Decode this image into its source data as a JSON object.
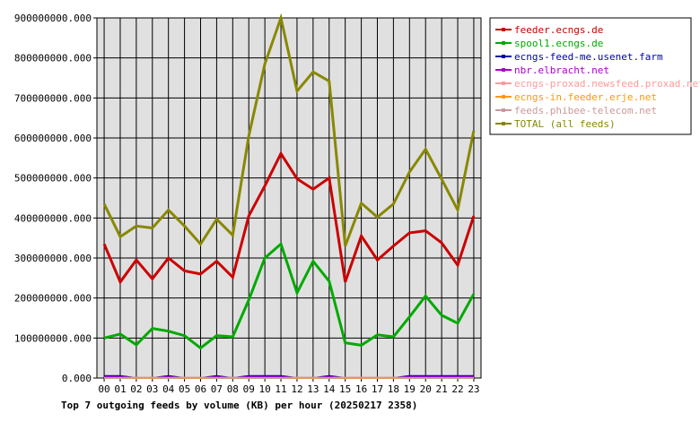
{
  "chart_data": {
    "type": "line",
    "title": "Top 7 outgoing feeds by volume (KB) per hour (20250217 2358)",
    "xlabel": "",
    "ylabel": "",
    "ylim": [
      0,
      900000000
    ],
    "grid": true,
    "legend_position": "right",
    "y_ticks": [
      "0.000",
      "100000000.000",
      "200000000.000",
      "300000000.000",
      "400000000.000",
      "500000000.000",
      "600000000.000",
      "700000000.000",
      "800000000.000",
      "900000000.000"
    ],
    "categories": [
      "00",
      "01",
      "02",
      "03",
      "04",
      "05",
      "06",
      "07",
      "08",
      "09",
      "10",
      "11",
      "12",
      "13",
      "14",
      "15",
      "16",
      "17",
      "18",
      "19",
      "20",
      "21",
      "22",
      "23"
    ],
    "series": [
      {
        "name": "feeder.ecngs.de",
        "color": "#cc0000",
        "values": [
          335000000,
          240000000,
          295000000,
          248000000,
          300000000,
          268000000,
          260000000,
          292000000,
          252000000,
          405000000,
          480000000,
          561000000,
          498000000,
          472000000,
          500000000,
          240000000,
          355000000,
          295000000,
          330000000,
          363000000,
          368000000,
          338000000,
          282000000,
          405000000
        ]
      },
      {
        "name": "spool1.ecngs.de",
        "color": "#00aa00",
        "values": [
          100000000,
          110000000,
          83000000,
          124000000,
          117000000,
          106000000,
          75000000,
          106000000,
          103000000,
          195000000,
          300000000,
          335000000,
          213000000,
          292000000,
          242000000,
          88000000,
          82000000,
          108000000,
          103000000,
          153000000,
          205000000,
          157000000,
          137000000,
          210000000
        ]
      },
      {
        "name": "ecngs-feed-me.usenet.farm",
        "color": "#0000aa",
        "values": [
          5000000,
          5000000,
          0,
          0,
          5000000,
          0,
          0,
          5000000,
          0,
          5000000,
          5000000,
          5000000,
          0,
          0,
          5000000,
          0,
          0,
          0,
          0,
          5000000,
          5000000,
          5000000,
          5000000,
          5000000
        ]
      },
      {
        "name": "nbr.elbracht.net",
        "color": "#aa00cc",
        "values": [
          3000000,
          3000000,
          0,
          0,
          3000000,
          0,
          0,
          3000000,
          0,
          3000000,
          3000000,
          3000000,
          0,
          0,
          3000000,
          0,
          0,
          0,
          0,
          3000000,
          3000000,
          3000000,
          3000000,
          3000000
        ]
      },
      {
        "name": "ecngs-proxad.newsfeed.proxad.net",
        "color": "#ff9999",
        "values": [
          0,
          0,
          1000000,
          1000000,
          0,
          1000000,
          1000000,
          0,
          1000000,
          0,
          0,
          0,
          1000000,
          1000000,
          0,
          1000000,
          1000000,
          1000000,
          1000000,
          0,
          0,
          0,
          0,
          0
        ]
      },
      {
        "name": "ecngs-in.feeder.erje.net",
        "color": "#ff9900",
        "values": [
          0,
          0,
          0,
          0,
          0,
          0,
          0,
          0,
          0,
          0,
          0,
          0,
          0,
          0,
          0,
          0,
          0,
          0,
          0,
          0,
          0,
          0,
          0,
          0
        ]
      },
      {
        "name": "feeds.phibee-telecom.net",
        "color": "#cc9999",
        "values": [
          0,
          0,
          1000000,
          1000000,
          0,
          1000000,
          1000000,
          0,
          1000000,
          0,
          0,
          0,
          1000000,
          1000000,
          0,
          1000000,
          1000000,
          1000000,
          1000000,
          0,
          0,
          0,
          0,
          0
        ]
      },
      {
        "name": "TOTAL (all feeds)",
        "color": "#888800",
        "values": [
          435000000,
          353000000,
          380000000,
          375000000,
          420000000,
          380000000,
          335000000,
          397000000,
          357000000,
          605000000,
          785000000,
          900000000,
          717000000,
          765000000,
          742000000,
          330000000,
          437000000,
          402000000,
          435000000,
          515000000,
          572000000,
          497000000,
          420000000,
          618000000
        ]
      }
    ]
  }
}
